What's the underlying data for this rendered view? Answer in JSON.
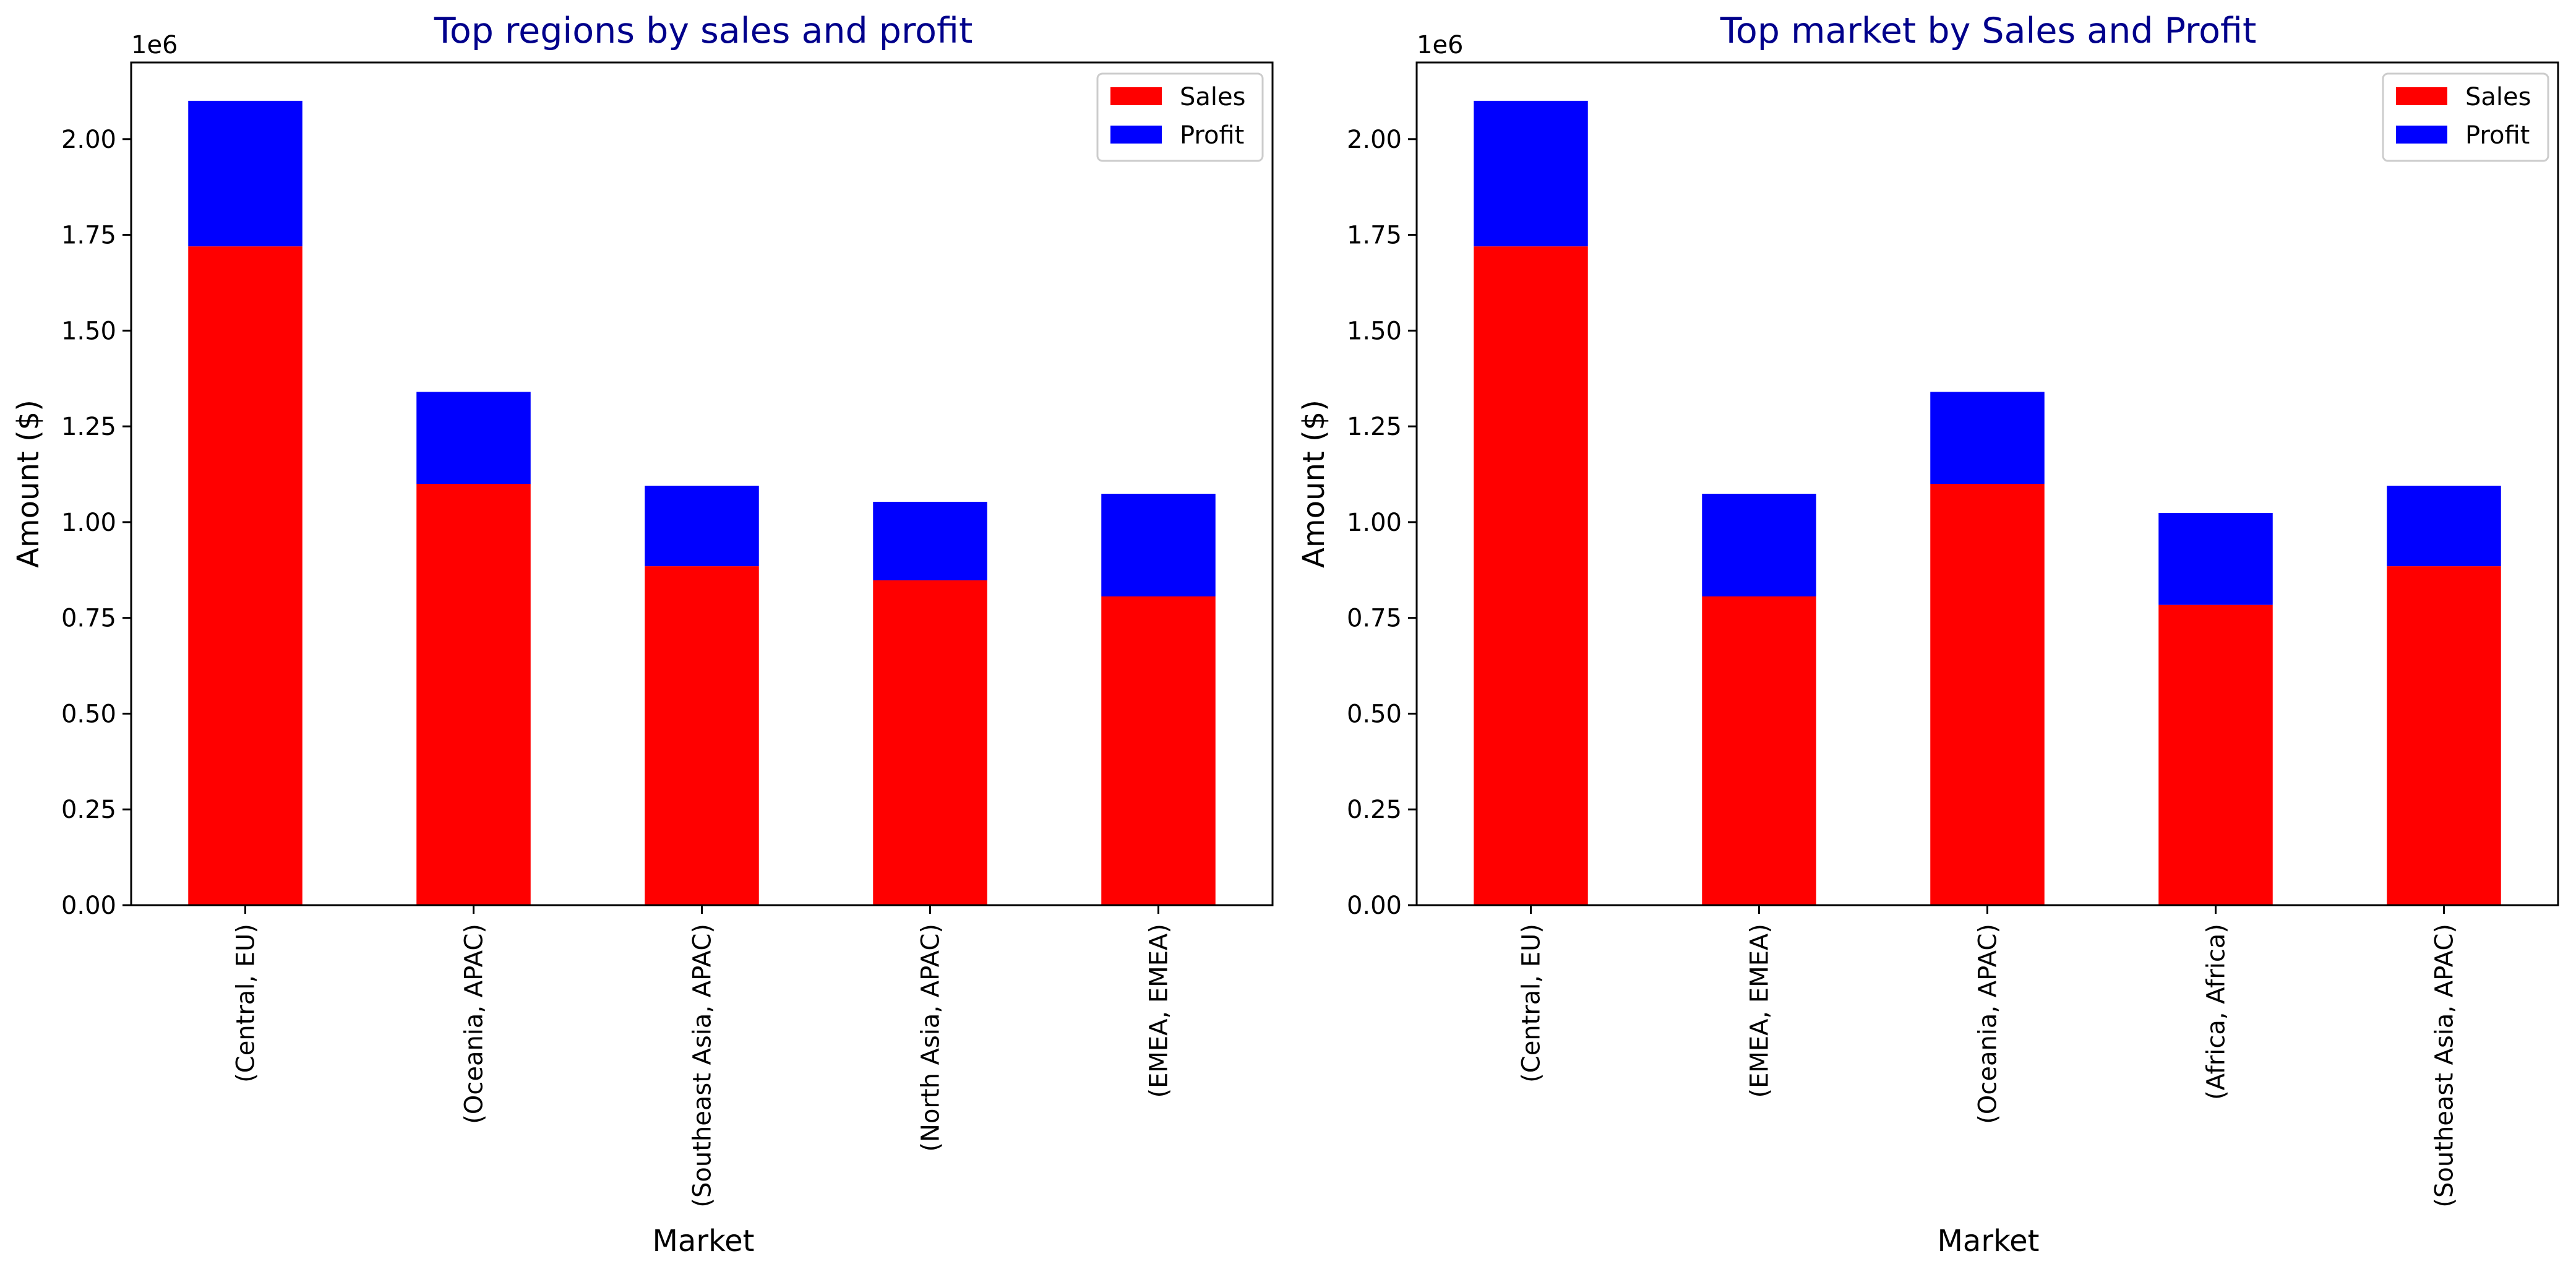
{
  "figure": {
    "scale_label": "1e6"
  },
  "chart_data": [
    {
      "type": "bar",
      "stacked": true,
      "title": "Top regions by sales and profit",
      "xlabel": "Market",
      "ylabel": "Amount ($)",
      "offset_label": "1e6",
      "ylim": [
        0,
        2.2
      ],
      "yticks": [
        "0.00",
        "0.25",
        "0.50",
        "0.75",
        "1.00",
        "1.25",
        "1.50",
        "1.75",
        "2.00"
      ],
      "categories": [
        "(Central, EU)",
        "(Oceania, APAC)",
        "(Southeast Asia, APAC)",
        "(North Asia, APAC)",
        "(EMEA, EMEA)"
      ],
      "series": [
        {
          "name": "Sales",
          "color": "#ff0000",
          "values": [
            1.72,
            1.1,
            0.885,
            0.848,
            0.806
          ]
        },
        {
          "name": "Profit",
          "color": "#0000ff",
          "values": [
            0.38,
            0.24,
            0.21,
            0.205,
            0.268
          ]
        }
      ],
      "legend": "top-right",
      "grid": false
    },
    {
      "type": "bar",
      "stacked": true,
      "title": "Top market by Sales and Profit",
      "xlabel": "Market",
      "ylabel": "Amount ($)",
      "offset_label": "1e6",
      "ylim": [
        0,
        2.2
      ],
      "yticks": [
        "0.00",
        "0.25",
        "0.50",
        "0.75",
        "1.00",
        "1.25",
        "1.50",
        "1.75",
        "2.00"
      ],
      "categories": [
        "(Central, EU)",
        "(EMEA, EMEA)",
        "(Oceania, APAC)",
        "(Africa, Africa)",
        "(Southeast Asia, APAC)"
      ],
      "series": [
        {
          "name": "Sales",
          "color": "#ff0000",
          "values": [
            1.72,
            0.806,
            1.1,
            0.784,
            0.885
          ]
        },
        {
          "name": "Profit",
          "color": "#0000ff",
          "values": [
            0.38,
            0.268,
            0.24,
            0.24,
            0.21
          ]
        }
      ],
      "legend": "top-right",
      "grid": false
    }
  ],
  "colors": {
    "title": "#00008b",
    "axis": "#000000",
    "legend_border": "#cccccc"
  }
}
